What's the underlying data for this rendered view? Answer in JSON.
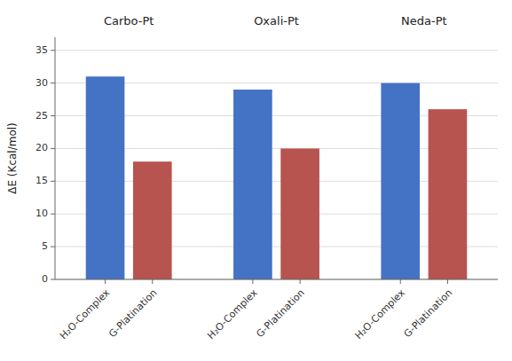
{
  "chart_data": {
    "type": "bar",
    "y_label": "ΔE (Kcal/mol)",
    "categories": [
      "Carbo-Pt",
      "Oxali-Pt",
      "Neda-Pt"
    ],
    "series": [
      {
        "name": "H₂O-Complex",
        "color": "#4472C4",
        "values": [
          31.0,
          29.0,
          30.0
        ]
      },
      {
        "name": "G-Platination",
        "color": "#B85450",
        "values": [
          18.0,
          20.0,
          26.0
        ]
      }
    ],
    "ylim": [
      0,
      37
    ],
    "yticks": [
      0,
      5,
      10,
      15,
      20,
      25,
      30,
      35
    ],
    "grid": true
  }
}
